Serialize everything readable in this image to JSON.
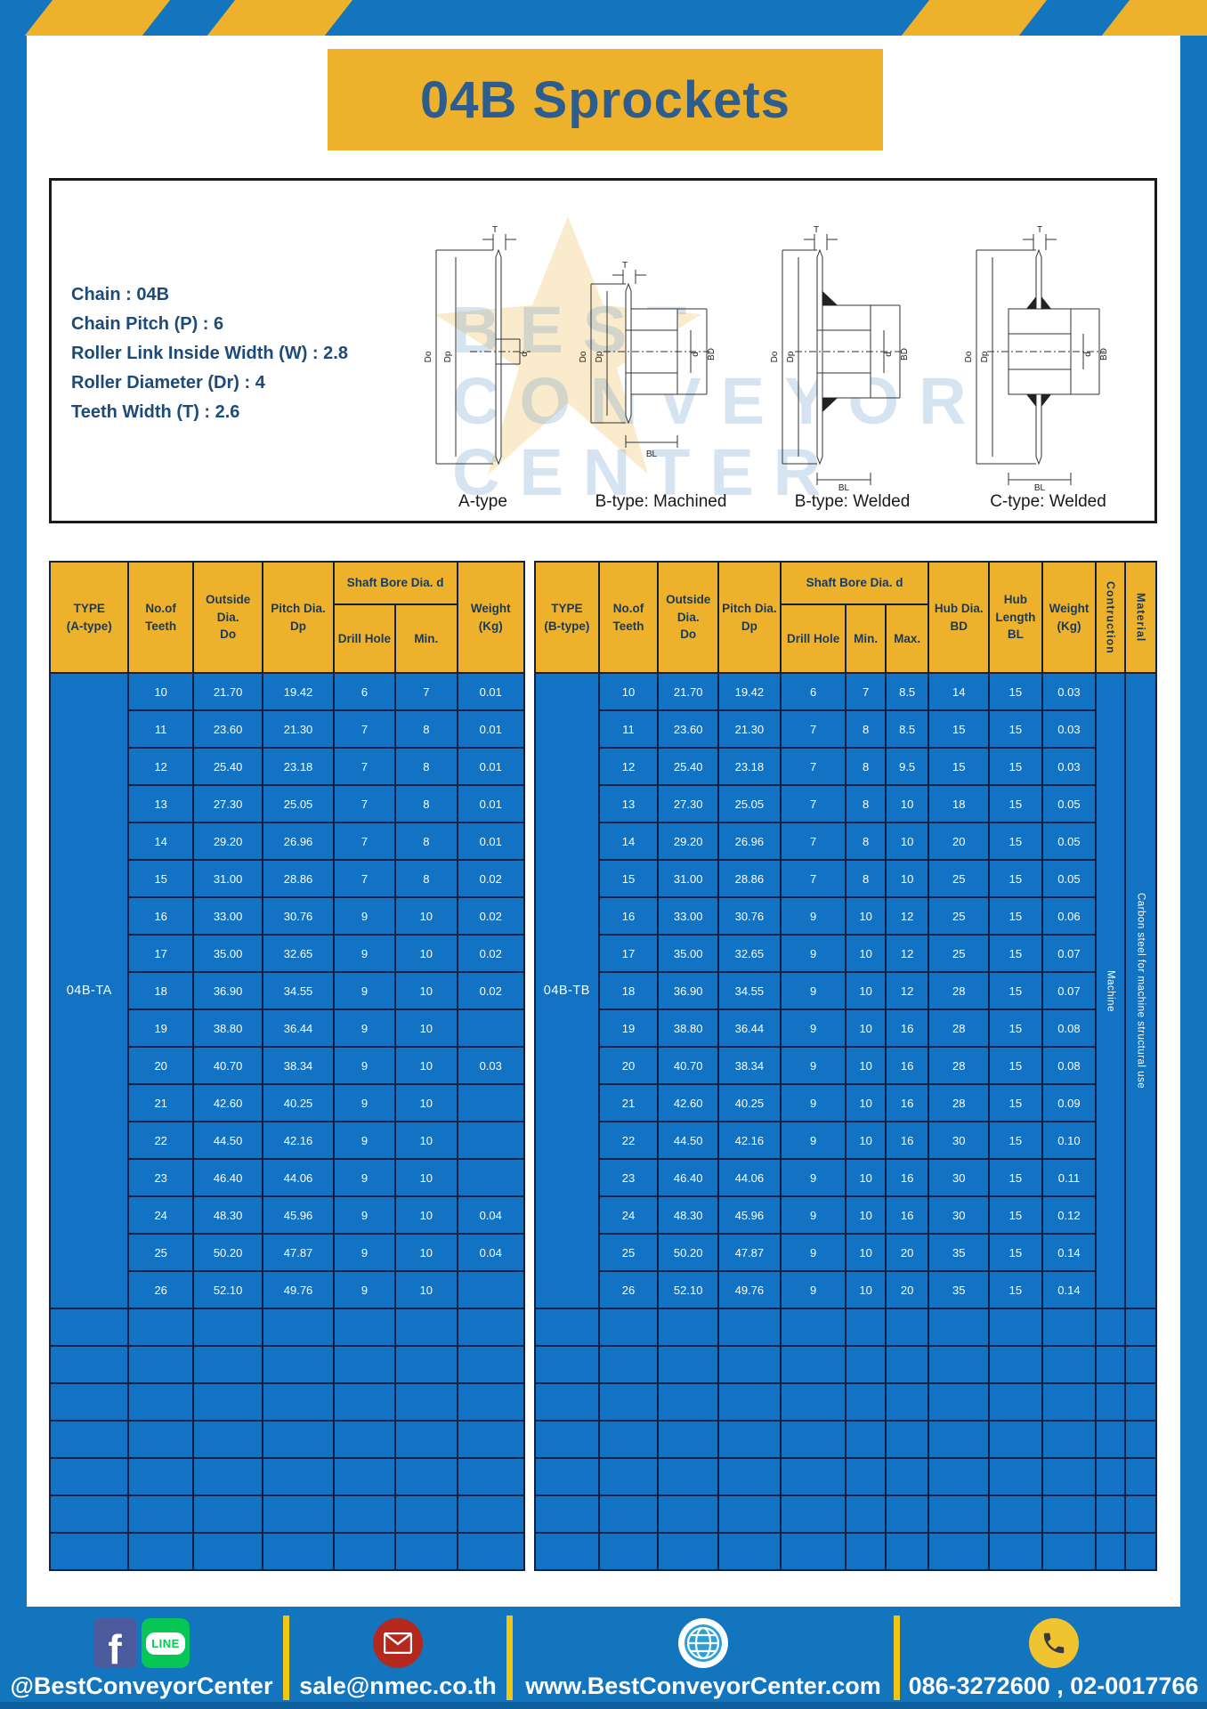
{
  "title": "04B Sprockets",
  "specs": {
    "text": "Chain  : 04B\nChain Pitch (P)  :  6\nRoller Link Inside Width (W)  :  2.8\nRoller Diameter (Dr)  : 4\nTeeth Width (T)  :  2.6"
  },
  "diagram": {
    "watermark": "BEST\nCONVEYOR\nCENTER",
    "captions": {
      "a": "A-type",
      "b_machined": "B-type: Machined",
      "b_welded": "B-type: Welded",
      "c_welded": "C-type: Welded"
    },
    "dims": {
      "t": "T",
      "do": "Do",
      "dp": "Dp",
      "d": "d",
      "bd": "BD",
      "bl": "BL"
    }
  },
  "tables": {
    "a": {
      "type_label": "04B-TA",
      "headers": {
        "type": "TYPE\n(A-type)",
        "teeth": "No.of\nTeeth",
        "outside": "Outside\nDia.\nDo",
        "pitch": "Pitch Dia.\nDp",
        "shaft_bore": "Shaft Bore Dia. d",
        "drill": "Drill Hole",
        "min": "Min.",
        "weight": "Weight\n(Kg)"
      },
      "rows": [
        [
          "10",
          "21.70",
          "19.42",
          "6",
          "7",
          "0.01"
        ],
        [
          "11",
          "23.60",
          "21.30",
          "7",
          "8",
          "0.01"
        ],
        [
          "12",
          "25.40",
          "23.18",
          "7",
          "8",
          "0.01"
        ],
        [
          "13",
          "27.30",
          "25.05",
          "7",
          "8",
          "0.01"
        ],
        [
          "14",
          "29.20",
          "26.96",
          "7",
          "8",
          "0.01"
        ],
        [
          "15",
          "31.00",
          "28.86",
          "7",
          "8",
          "0.02"
        ],
        [
          "16",
          "33.00",
          "30.76",
          "9",
          "10",
          "0.02"
        ],
        [
          "17",
          "35.00",
          "32.65",
          "9",
          "10",
          "0.02"
        ],
        [
          "18",
          "36.90",
          "34.55",
          "9",
          "10",
          "0.02"
        ],
        [
          "19",
          "38.80",
          "36.44",
          "9",
          "10",
          ""
        ],
        [
          "20",
          "40.70",
          "38.34",
          "9",
          "10",
          "0.03"
        ],
        [
          "21",
          "42.60",
          "40.25",
          "9",
          "10",
          ""
        ],
        [
          "22",
          "44.50",
          "42.16",
          "9",
          "10",
          ""
        ],
        [
          "23",
          "46.40",
          "44.06",
          "9",
          "10",
          ""
        ],
        [
          "24",
          "48.30",
          "45.96",
          "9",
          "10",
          "0.04"
        ],
        [
          "25",
          "50.20",
          "47.87",
          "9",
          "10",
          "0.04"
        ],
        [
          "26",
          "52.10",
          "49.76",
          "9",
          "10",
          ""
        ]
      ],
      "empty_rows": 7
    },
    "b": {
      "type_label": "04B-TB",
      "headers": {
        "type": "TYPE\n(B-type)",
        "teeth": "No.of\nTeeth",
        "outside": "Outside\nDia.\nDo",
        "pitch": "Pitch Dia.\nDp",
        "shaft_bore": "Shaft Bore Dia. d",
        "drill": "Drill Hole",
        "min": "Min.",
        "max": "Max.",
        "hub_dia": "Hub Dia.\nBD",
        "hub_len": "Hub\nLength\nBL",
        "weight": "Weight\n(Kg)",
        "construction": "Contruction",
        "material": "Material"
      },
      "construction_value": "Machine",
      "material_value": "Carbon steel for machine structural use",
      "rows": [
        [
          "10",
          "21.70",
          "19.42",
          "6",
          "7",
          "8.5",
          "14",
          "15",
          "0.03"
        ],
        [
          "11",
          "23.60",
          "21.30",
          "7",
          "8",
          "8.5",
          "15",
          "15",
          "0.03"
        ],
        [
          "12",
          "25.40",
          "23.18",
          "7",
          "8",
          "9.5",
          "15",
          "15",
          "0.03"
        ],
        [
          "13",
          "27.30",
          "25.05",
          "7",
          "8",
          "10",
          "18",
          "15",
          "0.05"
        ],
        [
          "14",
          "29.20",
          "26.96",
          "7",
          "8",
          "10",
          "20",
          "15",
          "0.05"
        ],
        [
          "15",
          "31.00",
          "28.86",
          "7",
          "8",
          "10",
          "25",
          "15",
          "0.05"
        ],
        [
          "16",
          "33.00",
          "30.76",
          "9",
          "10",
          "12",
          "25",
          "15",
          "0.06"
        ],
        [
          "17",
          "35.00",
          "32.65",
          "9",
          "10",
          "12",
          "25",
          "15",
          "0.07"
        ],
        [
          "18",
          "36.90",
          "34.55",
          "9",
          "10",
          "12",
          "28",
          "15",
          "0.07"
        ],
        [
          "19",
          "38.80",
          "36.44",
          "9",
          "10",
          "16",
          "28",
          "15",
          "0.08"
        ],
        [
          "20",
          "40.70",
          "38.34",
          "9",
          "10",
          "16",
          "28",
          "15",
          "0.08"
        ],
        [
          "21",
          "42.60",
          "40.25",
          "9",
          "10",
          "16",
          "28",
          "15",
          "0.09"
        ],
        [
          "22",
          "44.50",
          "42.16",
          "9",
          "10",
          "16",
          "30",
          "15",
          "0.10"
        ],
        [
          "23",
          "46.40",
          "44.06",
          "9",
          "10",
          "16",
          "30",
          "15",
          "0.11"
        ],
        [
          "24",
          "48.30",
          "45.96",
          "9",
          "10",
          "16",
          "30",
          "15",
          "0.12"
        ],
        [
          "25",
          "50.20",
          "47.87",
          "9",
          "10",
          "20",
          "35",
          "15",
          "0.14"
        ],
        [
          "26",
          "52.10",
          "49.76",
          "9",
          "10",
          "20",
          "35",
          "15",
          "0.14"
        ]
      ],
      "empty_rows": 7
    }
  },
  "footer": {
    "facebook_glyph": "f",
    "line_label": "LINE",
    "social": "@BestConveyorCenter",
    "email": "sale@nmec.co.th",
    "website": "www.BestConveyorCenter.com",
    "phone": "086-3272600 , 02-0017766"
  },
  "colors": {
    "frame_blue": "#1375bd",
    "table_blue": "#1273c4",
    "accent_yellow": "#eeb12c",
    "divider_yellow": "#f3c515",
    "grid_navy": "#0f2148",
    "title_text": "#2d5c8e"
  }
}
